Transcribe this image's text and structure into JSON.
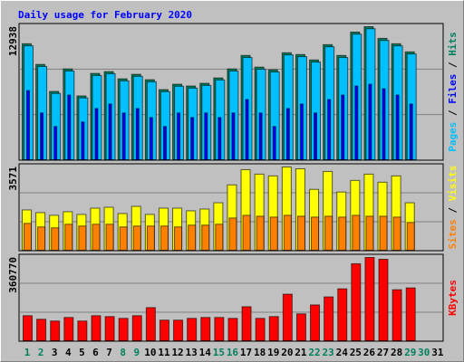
{
  "chart_data": [
    {
      "type": "bar",
      "title": "Daily usage for February 2020",
      "categories": [
        "1",
        "2",
        "3",
        "4",
        "5",
        "6",
        "7",
        "8",
        "9",
        "10",
        "11",
        "12",
        "13",
        "14",
        "15",
        "16",
        "17",
        "18",
        "19",
        "20",
        "21",
        "22",
        "23",
        "24",
        "25",
        "26",
        "27",
        "28",
        "29",
        "30",
        "31"
      ],
      "category_colors": [
        "#00805c",
        "#00805c",
        "#000000",
        "#000000",
        "#000000",
        "#000000",
        "#000000",
        "#00805c",
        "#00805c",
        "#000000",
        "#000000",
        "#000000",
        "#000000",
        "#000000",
        "#00805c",
        "#00805c",
        "#000000",
        "#000000",
        "#000000",
        "#000000",
        "#000000",
        "#00805c",
        "#00805c",
        "#000000",
        "#000000",
        "#000000",
        "#000000",
        "#000000",
        "#00805c",
        "#00805c",
        "#000000"
      ],
      "legend_separator": " / ",
      "ylim": [
        0,
        12938
      ],
      "yticks": [
        12938
      ],
      "series": [
        {
          "name": "Hits",
          "color": "#00805c",
          "values": [
            11276,
            9267,
            6643,
            8830,
            6207,
            8392,
            8567,
            7868,
            8305,
            7781,
            6819,
            7343,
            7169,
            7431,
            7955,
            8830,
            10141,
            9004,
            8742,
            10403,
            10228,
            9704,
            11190,
            10141,
            12414,
            12938,
            11802,
            11276,
            10490,
            null,
            null
          ]
        },
        {
          "name": "Files",
          "color": "#0000ff",
          "values": [
            6730,
            4545,
            3234,
            6293,
            3671,
            4982,
            5419,
            4545,
            4982,
            4108,
            3234,
            4545,
            4108,
            4545,
            4108,
            4545,
            5856,
            4545,
            3234,
            4982,
            5419,
            4545,
            5856,
            6293,
            7167,
            7342,
            6905,
            6293,
            5419,
            null,
            null
          ]
        },
        {
          "name": "Pages",
          "color": "#00c0ff",
          "values": [
            11080,
            9070,
            6450,
            8630,
            6010,
            8190,
            8370,
            7670,
            8110,
            7580,
            6620,
            7150,
            6970,
            7230,
            7760,
            8630,
            9940,
            8800,
            8540,
            10200,
            10030,
            9500,
            10990,
            9940,
            12210,
            12740,
            11600,
            11080,
            10290,
            null,
            null
          ]
        }
      ]
    },
    {
      "type": "bar",
      "legend_separator": " / ",
      "ylim": [
        0,
        3571
      ],
      "yticks": [
        3571
      ],
      "series": [
        {
          "name": "Visits",
          "color": "#ffff00",
          "values": [
            1728,
            1613,
            1498,
            1651,
            1536,
            1805,
            1843,
            1574,
            1882,
            1536,
            1805,
            1805,
            1690,
            1766,
            2035,
            2803,
            3456,
            3264,
            3187,
            3571,
            3494,
            2611,
            3379,
            2496,
            2995,
            3264,
            2918,
            3187,
            2035,
            null,
            null
          ]
        },
        {
          "name": "Sites",
          "color": "#ff8000",
          "values": [
            1152,
            998,
            960,
            1114,
            1037,
            1114,
            1114,
            998,
            1037,
            1037,
            1037,
            998,
            1075,
            1075,
            1114,
            1382,
            1498,
            1459,
            1421,
            1498,
            1459,
            1421,
            1459,
            1421,
            1498,
            1459,
            1459,
            1421,
            1190,
            null,
            null
          ]
        }
      ]
    },
    {
      "type": "bar",
      "ylim": [
        0,
        360770
      ],
      "yticks": [
        360770
      ],
      "series": [
        {
          "name": "KBytes",
          "color": "#ff0000",
          "values": [
            108612,
            93096,
            85338,
            100854,
            85338,
            108612,
            104733,
            96975,
            108612,
            143523,
            89217,
            89217,
            96975,
            100854,
            100854,
            96975,
            147402,
            96975,
            104733,
            201708,
            116370,
            155160,
            190071,
            224982,
            333594,
            360770,
            352989,
            221103,
            228861,
            null,
            null
          ]
        }
      ]
    }
  ]
}
